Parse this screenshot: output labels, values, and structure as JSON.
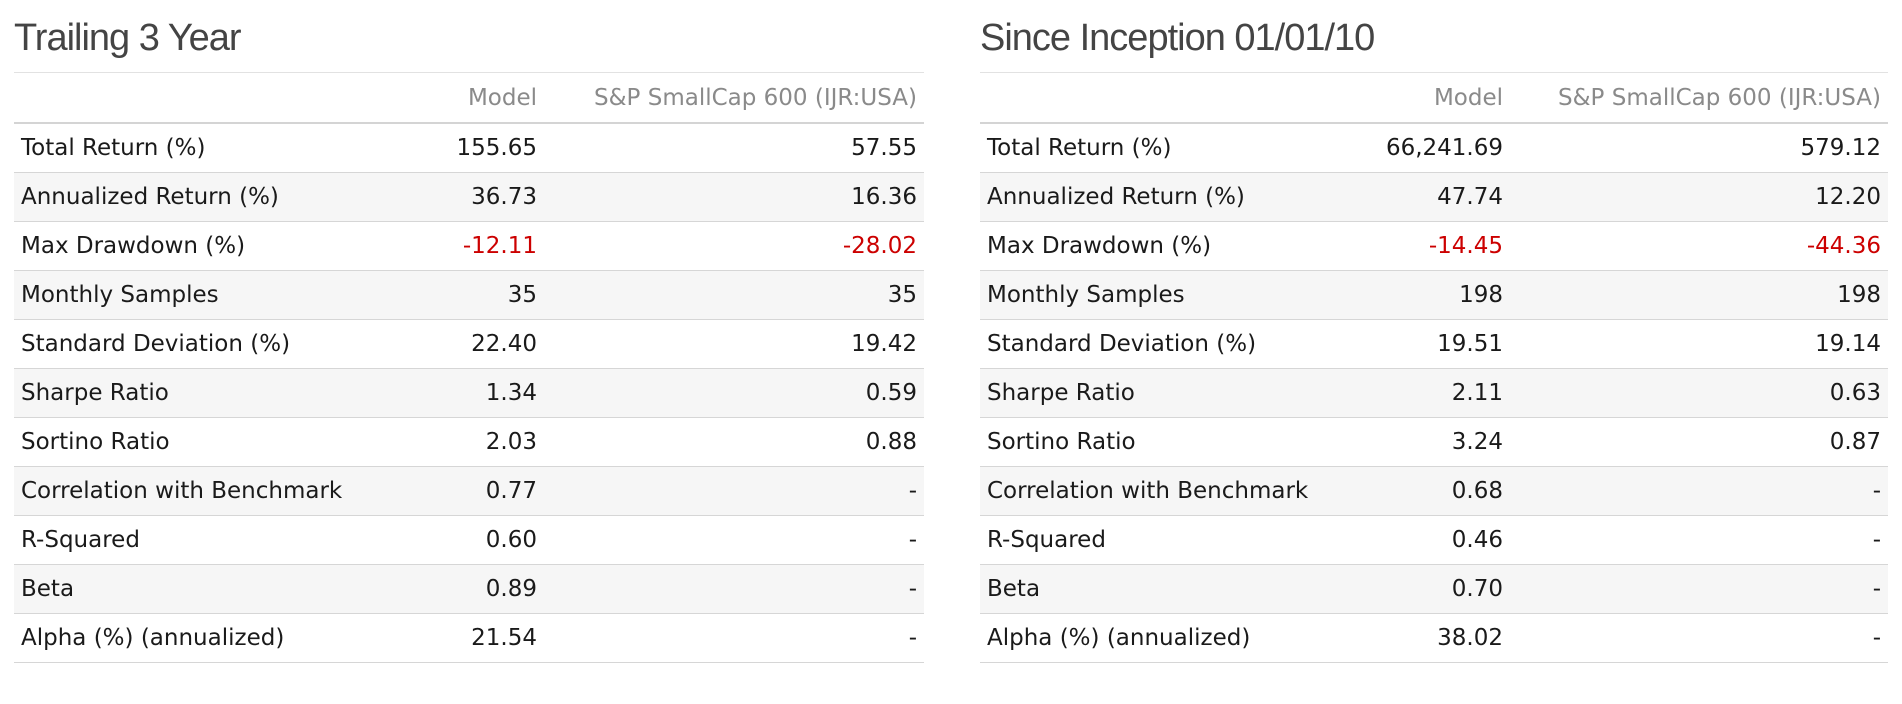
{
  "panels": [
    {
      "title": "Trailing 3 Year",
      "columns": [
        "",
        "Model",
        "S&P SmallCap 600 (IJR:USA)"
      ],
      "rows": [
        {
          "label": "Total Return (%)",
          "model": "155.65",
          "benchmark": "57.55",
          "negative": false
        },
        {
          "label": "Annualized Return (%)",
          "model": "36.73",
          "benchmark": "16.36",
          "negative": false
        },
        {
          "label": "Max Drawdown (%)",
          "model": "-12.11",
          "benchmark": "-28.02",
          "negative": true
        },
        {
          "label": "Monthly Samples",
          "model": "35",
          "benchmark": "35",
          "negative": false
        },
        {
          "label": "Standard Deviation (%)",
          "model": "22.40",
          "benchmark": "19.42",
          "negative": false
        },
        {
          "label": "Sharpe Ratio",
          "model": "1.34",
          "benchmark": "0.59",
          "negative": false
        },
        {
          "label": "Sortino Ratio",
          "model": "2.03",
          "benchmark": "0.88",
          "negative": false
        },
        {
          "label": "Correlation with Benchmark",
          "model": "0.77",
          "benchmark": "-",
          "negative": false
        },
        {
          "label": "R-Squared",
          "model": "0.60",
          "benchmark": "-",
          "negative": false
        },
        {
          "label": "Beta",
          "model": "0.89",
          "benchmark": "-",
          "negative": false
        },
        {
          "label": "Alpha (%) (annualized)",
          "model": "21.54",
          "benchmark": "-",
          "negative": false
        }
      ]
    },
    {
      "title": "Since Inception 01/01/10",
      "columns": [
        "",
        "Model",
        "S&P SmallCap 600 (IJR:USA)"
      ],
      "rows": [
        {
          "label": "Total Return (%)",
          "model": "66,241.69",
          "benchmark": "579.12",
          "negative": false
        },
        {
          "label": "Annualized Return (%)",
          "model": "47.74",
          "benchmark": "12.20",
          "negative": false
        },
        {
          "label": "Max Drawdown (%)",
          "model": "-14.45",
          "benchmark": "-44.36",
          "negative": true
        },
        {
          "label": "Monthly Samples",
          "model": "198",
          "benchmark": "198",
          "negative": false
        },
        {
          "label": "Standard Deviation (%)",
          "model": "19.51",
          "benchmark": "19.14",
          "negative": false
        },
        {
          "label": "Sharpe Ratio",
          "model": "2.11",
          "benchmark": "0.63",
          "negative": false
        },
        {
          "label": "Sortino Ratio",
          "model": "3.24",
          "benchmark": "0.87",
          "negative": false
        },
        {
          "label": "Correlation with Benchmark",
          "model": "0.68",
          "benchmark": "-",
          "negative": false
        },
        {
          "label": "R-Squared",
          "model": "0.46",
          "benchmark": "-",
          "negative": false
        },
        {
          "label": "Beta",
          "model": "0.70",
          "benchmark": "-",
          "negative": false
        },
        {
          "label": "Alpha (%) (annualized)",
          "model": "38.02",
          "benchmark": "-",
          "negative": false
        }
      ]
    }
  ],
  "colors": {
    "negative": "#cc0000",
    "header_text": "#8a8a8a",
    "title_text": "#444444",
    "row_alt_bg": "#f6f6f6"
  }
}
